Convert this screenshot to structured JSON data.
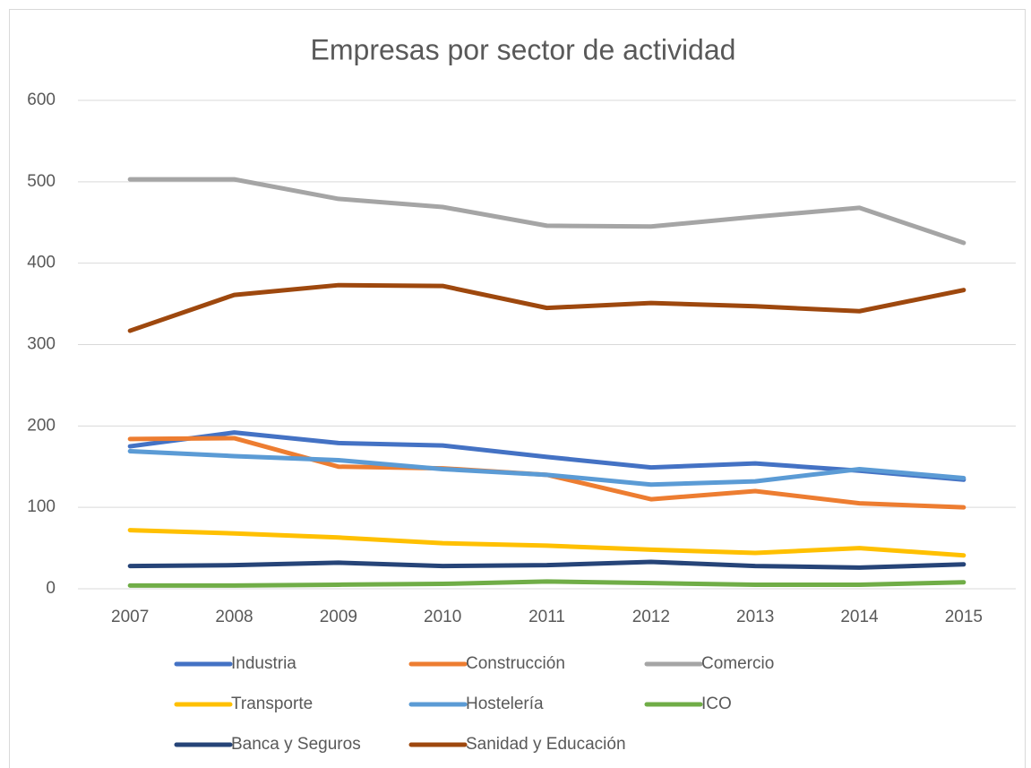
{
  "chart_data": {
    "type": "line",
    "title": "Empresas por sector de actividad",
    "categories": [
      "2007",
      "2008",
      "2009",
      "2010",
      "2011",
      "2012",
      "2013",
      "2014",
      "2015"
    ],
    "series": [
      {
        "name": "Industria",
        "color": "#4472c4",
        "values": [
          175,
          192,
          179,
          176,
          162,
          149,
          154,
          145,
          134
        ]
      },
      {
        "name": "Construcción",
        "color": "#ed7d31",
        "values": [
          184,
          185,
          150,
          148,
          140,
          110,
          120,
          105,
          100
        ]
      },
      {
        "name": "Comercio",
        "color": "#a5a5a5",
        "values": [
          503,
          503,
          479,
          469,
          446,
          445,
          457,
          468,
          425
        ]
      },
      {
        "name": "Transporte",
        "color": "#ffc000",
        "values": [
          72,
          68,
          63,
          56,
          53,
          48,
          44,
          50,
          41
        ]
      },
      {
        "name": "Hostelería",
        "color": "#5b9bd5",
        "values": [
          169,
          163,
          158,
          147,
          140,
          128,
          132,
          147,
          136
        ]
      },
      {
        "name": "ICO",
        "color": "#70ad47",
        "values": [
          4,
          4,
          5,
          6,
          9,
          7,
          5,
          5,
          8
        ]
      },
      {
        "name": "Banca y Seguros",
        "color": "#264478",
        "values": [
          28,
          29,
          32,
          28,
          29,
          33,
          28,
          26,
          30
        ]
      },
      {
        "name": "Sanidad y Educación",
        "color": "#9e480e",
        "values": [
          317,
          361,
          373,
          372,
          345,
          351,
          347,
          341,
          367
        ]
      }
    ],
    "ylim": [
      0,
      600
    ],
    "yticks": [
      0,
      100,
      200,
      300,
      400,
      500,
      600
    ],
    "grid": true,
    "legend": "bottom"
  }
}
